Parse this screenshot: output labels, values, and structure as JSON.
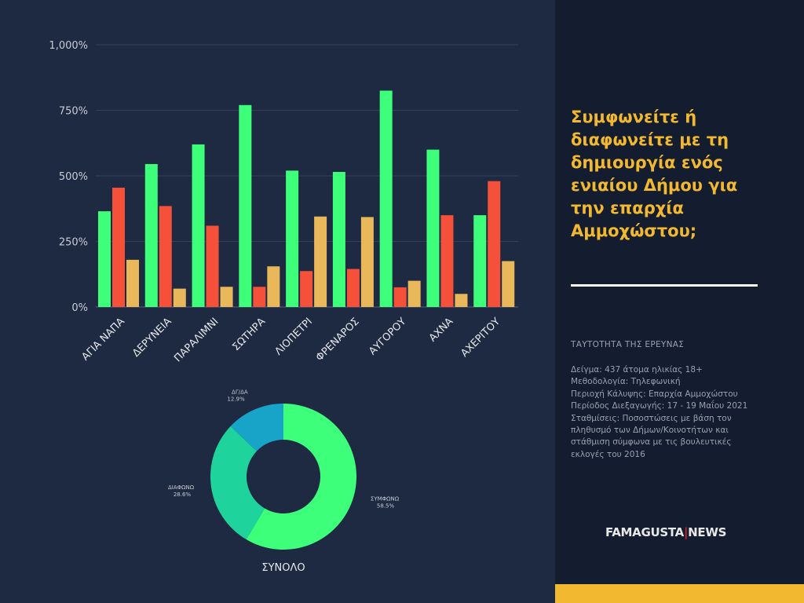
{
  "chart_data": [
    {
      "type": "bar",
      "categories": [
        "ΑΓΙΑ ΝΑΠΑ",
        "ΔΕΡΥΝΕΙΑ",
        "ΠΑΡΑΛΙΜΝΙ",
        "ΣΩΤΗΡΑ",
        "ΛΙΟΠΕΤΡΙ",
        "ΦΡΕΝΑΡΟΣ",
        "ΑΥΓΟΡΟΥ",
        "ΑΧΝΑ",
        "ΑΧΕΡΙΤΟΥ"
      ],
      "series": [
        {
          "color": "#3dff7a",
          "values": [
            365,
            545,
            620,
            770,
            520,
            515,
            825,
            600,
            350
          ]
        },
        {
          "color": "#f5503a",
          "values": [
            455,
            385,
            310,
            77,
            137,
            145,
            75,
            350,
            480
          ]
        },
        {
          "color": "#e8b85a",
          "values": [
            180,
            70,
            77,
            155,
            345,
            343,
            100,
            50,
            175
          ]
        }
      ],
      "ylim": [
        0,
        1000
      ],
      "yticks": [
        "0%",
        "250%",
        "500%",
        "750%",
        "1,000%"
      ],
      "grid": true,
      "legend": "none"
    },
    {
      "type": "pie",
      "style": "donut",
      "title": "ΣΥΝΟΛΟ",
      "slices": [
        {
          "label": "ΣΥΜΦΩΝΩ",
          "value": 58.5,
          "display": "58.5%",
          "color": "#3dff7a"
        },
        {
          "label": "ΔΙΑΦΩΝΩ",
          "value": 28.6,
          "display": "28.6%",
          "color": "#1fd39c"
        },
        {
          "label": "ΔΓ/ΔΑ",
          "value": 12.9,
          "display": "12.9%",
          "color": "#17a4c8"
        }
      ]
    }
  ],
  "sidebar": {
    "question": "Συμφωνείτε ή διαφωνείτε με τη δημιουργία ενός ενιαίου Δήμου για την επαρχία Αμμοχώστου;",
    "survey_heading": "ΤΑΥΤΟΤΗΤΑ ΤΗΣ ΕΡΕΥΝΑΣ",
    "survey_details": [
      "Δείγμα: 437 άτομα ηλικίας 18+",
      "Μεθοδολογία: Τηλεφωνική",
      "Περιοχή Κάλυψης: Επαρχία Αμμοχώστου",
      "Περίοδος Διεξαγωγής: 17 - 19 Μαΐου 2021",
      "Σταθμίσεις: Ποσοστώσεις με βάση τον",
      "πληθυσμό των Δήμων/Κοινοτήτων και",
      "στάθμιση σύμφωνα με τις βουλευτικές",
      "εκλογές του 2016"
    ],
    "logo_left": "FAMAGUSTA",
    "logo_right": "NEWS"
  }
}
